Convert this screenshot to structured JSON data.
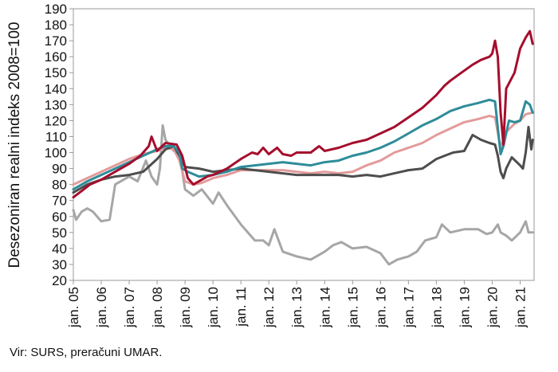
{
  "chart_data": {
    "type": "line",
    "title": "",
    "xlabel": "",
    "ylabel": "Desezoniran realni indeks 2008=100",
    "ylim": [
      20,
      190
    ],
    "yticks": [
      20,
      30,
      40,
      50,
      60,
      70,
      80,
      90,
      100,
      110,
      120,
      130,
      140,
      150,
      160,
      170,
      180,
      190
    ],
    "ytick_labels": [
      "20",
      "30",
      "40",
      "50",
      "60",
      "70",
      "80",
      "90",
      "100",
      "110",
      "120",
      "130",
      "140",
      "150",
      "160",
      "170",
      "180",
      "190"
    ],
    "xlim": [
      2005.0,
      2021.5
    ],
    "xticks": [
      2005,
      2006,
      2007,
      2008,
      2009,
      2010,
      2011,
      2012,
      2013,
      2014,
      2015,
      2016,
      2017,
      2018,
      2019,
      2020,
      2021
    ],
    "xtick_labels": [
      "jan. 05",
      "jan. 06",
      "jan. 07",
      "jan. 08",
      "jan. 09",
      "jan. 10",
      "jan. 11",
      "jan. 12",
      "jan. 13",
      "jan. 14",
      "jan. 15",
      "jan. 16",
      "jan. 17",
      "jan. 18",
      "jan. 19",
      "jan. 20",
      "jan. 21"
    ],
    "grid": false,
    "legend": "none",
    "series": [
      {
        "name": "darkred",
        "color": "#A50E2D",
        "points": [
          [
            2005.0,
            72
          ],
          [
            2005.3,
            76
          ],
          [
            2005.6,
            80
          ],
          [
            2006.0,
            83
          ],
          [
            2006.5,
            88
          ],
          [
            2007.0,
            93
          ],
          [
            2007.4,
            98
          ],
          [
            2007.7,
            104
          ],
          [
            2007.8,
            110
          ],
          [
            2008.0,
            101
          ],
          [
            2008.3,
            106
          ],
          [
            2008.7,
            105
          ],
          [
            2008.9,
            98
          ],
          [
            2009.1,
            84
          ],
          [
            2009.3,
            80
          ],
          [
            2009.5,
            82
          ],
          [
            2009.8,
            85
          ],
          [
            2010.0,
            86
          ],
          [
            2010.5,
            90
          ],
          [
            2011.0,
            96
          ],
          [
            2011.4,
            100
          ],
          [
            2011.6,
            99
          ],
          [
            2011.8,
            103
          ],
          [
            2012.0,
            99
          ],
          [
            2012.3,
            103
          ],
          [
            2012.5,
            99
          ],
          [
            2012.8,
            98
          ],
          [
            2013.0,
            100
          ],
          [
            2013.5,
            100
          ],
          [
            2013.8,
            104
          ],
          [
            2014.0,
            101
          ],
          [
            2014.5,
            103
          ],
          [
            2015.0,
            106
          ],
          [
            2015.5,
            108
          ],
          [
            2016.0,
            112
          ],
          [
            2016.5,
            116
          ],
          [
            2017.0,
            122
          ],
          [
            2017.5,
            128
          ],
          [
            2018.0,
            136
          ],
          [
            2018.3,
            142
          ],
          [
            2018.5,
            145
          ],
          [
            2018.9,
            150
          ],
          [
            2019.3,
            155
          ],
          [
            2019.6,
            158
          ],
          [
            2019.9,
            160
          ],
          [
            2020.0,
            162
          ],
          [
            2020.1,
            170
          ],
          [
            2020.2,
            160
          ],
          [
            2020.3,
            125
          ],
          [
            2020.4,
            105
          ],
          [
            2020.5,
            140
          ],
          [
            2020.8,
            150
          ],
          [
            2021.0,
            165
          ],
          [
            2021.2,
            172
          ],
          [
            2021.35,
            176
          ],
          [
            2021.45,
            168
          ]
        ]
      },
      {
        "name": "teal",
        "color": "#2E8C99",
        "points": [
          [
            2005.0,
            77
          ],
          [
            2005.5,
            82
          ],
          [
            2006.0,
            86
          ],
          [
            2006.5,
            90
          ],
          [
            2007.0,
            94
          ],
          [
            2007.5,
            98
          ],
          [
            2008.0,
            102
          ],
          [
            2008.3,
            104
          ],
          [
            2008.6,
            104
          ],
          [
            2008.8,
            100
          ],
          [
            2008.9,
            90
          ],
          [
            2009.1,
            88
          ],
          [
            2009.5,
            85
          ],
          [
            2010.0,
            86
          ],
          [
            2010.5,
            88
          ],
          [
            2011.0,
            91
          ],
          [
            2011.5,
            92
          ],
          [
            2012.0,
            93
          ],
          [
            2012.5,
            94
          ],
          [
            2013.0,
            93
          ],
          [
            2013.5,
            92
          ],
          [
            2014.0,
            94
          ],
          [
            2014.5,
            95
          ],
          [
            2015.0,
            98
          ],
          [
            2015.5,
            100
          ],
          [
            2016.0,
            103
          ],
          [
            2016.5,
            107
          ],
          [
            2017.0,
            112
          ],
          [
            2017.5,
            117
          ],
          [
            2018.0,
            121
          ],
          [
            2018.5,
            126
          ],
          [
            2019.0,
            129
          ],
          [
            2019.5,
            131
          ],
          [
            2019.9,
            133
          ],
          [
            2020.1,
            132
          ],
          [
            2020.3,
            99
          ],
          [
            2020.4,
            104
          ],
          [
            2020.6,
            120
          ],
          [
            2020.8,
            119
          ],
          [
            2021.0,
            120
          ],
          [
            2021.2,
            132
          ],
          [
            2021.35,
            130
          ],
          [
            2021.45,
            125
          ]
        ]
      },
      {
        "name": "pink",
        "color": "#E39A9A",
        "points": [
          [
            2005.0,
            80
          ],
          [
            2005.5,
            84
          ],
          [
            2006.0,
            88
          ],
          [
            2006.5,
            92
          ],
          [
            2007.0,
            96
          ],
          [
            2007.5,
            99
          ],
          [
            2008.0,
            101
          ],
          [
            2008.3,
            103
          ],
          [
            2008.6,
            102
          ],
          [
            2008.8,
            95
          ],
          [
            2009.0,
            82
          ],
          [
            2009.3,
            80
          ],
          [
            2009.6,
            81
          ],
          [
            2010.0,
            84
          ],
          [
            2010.5,
            86
          ],
          [
            2011.0,
            89
          ],
          [
            2011.5,
            89
          ],
          [
            2012.0,
            89
          ],
          [
            2012.5,
            89
          ],
          [
            2013.0,
            88
          ],
          [
            2013.5,
            87
          ],
          [
            2014.0,
            88
          ],
          [
            2014.5,
            87
          ],
          [
            2015.0,
            88
          ],
          [
            2015.5,
            92
          ],
          [
            2016.0,
            95
          ],
          [
            2016.5,
            100
          ],
          [
            2017.0,
            103
          ],
          [
            2017.5,
            106
          ],
          [
            2018.0,
            111
          ],
          [
            2018.5,
            115
          ],
          [
            2019.0,
            119
          ],
          [
            2019.5,
            121
          ],
          [
            2019.9,
            123
          ],
          [
            2020.1,
            122
          ],
          [
            2020.3,
            103
          ],
          [
            2020.5,
            113
          ],
          [
            2020.8,
            118
          ],
          [
            2021.0,
            120
          ],
          [
            2021.2,
            124
          ],
          [
            2021.45,
            125
          ]
        ]
      },
      {
        "name": "darkgray",
        "color": "#4D4D4D",
        "points": [
          [
            2005.0,
            75
          ],
          [
            2005.5,
            80
          ],
          [
            2006.0,
            83
          ],
          [
            2006.5,
            85
          ],
          [
            2007.0,
            86
          ],
          [
            2007.5,
            88
          ],
          [
            2008.0,
            96
          ],
          [
            2008.3,
            102
          ],
          [
            2008.6,
            104
          ],
          [
            2008.8,
            98
          ],
          [
            2009.0,
            91
          ],
          [
            2009.5,
            90
          ],
          [
            2010.0,
            88
          ],
          [
            2010.5,
            89
          ],
          [
            2011.0,
            90
          ],
          [
            2011.5,
            89
          ],
          [
            2012.0,
            88
          ],
          [
            2012.5,
            87
          ],
          [
            2013.0,
            86
          ],
          [
            2013.5,
            86
          ],
          [
            2014.0,
            86
          ],
          [
            2014.5,
            86
          ],
          [
            2015.0,
            85
          ],
          [
            2015.5,
            86
          ],
          [
            2016.0,
            85
          ],
          [
            2016.5,
            87
          ],
          [
            2017.0,
            89
          ],
          [
            2017.5,
            90
          ],
          [
            2018.0,
            96
          ],
          [
            2018.3,
            98
          ],
          [
            2018.6,
            100
          ],
          [
            2019.0,
            101
          ],
          [
            2019.3,
            111
          ],
          [
            2019.6,
            108
          ],
          [
            2019.9,
            106
          ],
          [
            2020.1,
            105
          ],
          [
            2020.2,
            98
          ],
          [
            2020.3,
            88
          ],
          [
            2020.4,
            84
          ],
          [
            2020.5,
            90
          ],
          [
            2020.7,
            97
          ],
          [
            2021.0,
            92
          ],
          [
            2021.1,
            90
          ],
          [
            2021.2,
            100
          ],
          [
            2021.3,
            116
          ],
          [
            2021.4,
            102
          ],
          [
            2021.45,
            108
          ]
        ]
      },
      {
        "name": "lightgray",
        "color": "#A6A6A6",
        "points": [
          [
            2005.0,
            64
          ],
          [
            2005.1,
            58
          ],
          [
            2005.3,
            63
          ],
          [
            2005.5,
            65
          ],
          [
            2005.7,
            63
          ],
          [
            2006.0,
            57
          ],
          [
            2006.3,
            58
          ],
          [
            2006.5,
            80
          ],
          [
            2007.0,
            85
          ],
          [
            2007.3,
            82
          ],
          [
            2007.6,
            95
          ],
          [
            2007.8,
            85
          ],
          [
            2008.0,
            80
          ],
          [
            2008.1,
            90
          ],
          [
            2008.2,
            117
          ],
          [
            2008.3,
            108
          ],
          [
            2008.6,
            101
          ],
          [
            2008.8,
            100
          ],
          [
            2009.0,
            77
          ],
          [
            2009.3,
            73
          ],
          [
            2009.6,
            77
          ],
          [
            2010.0,
            68
          ],
          [
            2010.2,
            75
          ],
          [
            2010.5,
            67
          ],
          [
            2011.0,
            55
          ],
          [
            2011.5,
            45
          ],
          [
            2011.8,
            45
          ],
          [
            2012.0,
            42
          ],
          [
            2012.2,
            52
          ],
          [
            2012.5,
            38
          ],
          [
            2013.0,
            35
          ],
          [
            2013.5,
            33
          ],
          [
            2014.0,
            38
          ],
          [
            2014.3,
            42
          ],
          [
            2014.6,
            44
          ],
          [
            2015.0,
            40
          ],
          [
            2015.5,
            41
          ],
          [
            2016.0,
            37
          ],
          [
            2016.3,
            30
          ],
          [
            2016.6,
            33
          ],
          [
            2017.0,
            35
          ],
          [
            2017.3,
            38
          ],
          [
            2017.6,
            45
          ],
          [
            2018.0,
            47
          ],
          [
            2018.2,
            55
          ],
          [
            2018.5,
            50
          ],
          [
            2019.0,
            52
          ],
          [
            2019.5,
            52
          ],
          [
            2019.8,
            49
          ],
          [
            2020.0,
            50
          ],
          [
            2020.2,
            55
          ],
          [
            2020.3,
            50
          ],
          [
            2020.5,
            48
          ],
          [
            2020.7,
            45
          ],
          [
            2021.0,
            50
          ],
          [
            2021.2,
            57
          ],
          [
            2021.3,
            50
          ],
          [
            2021.45,
            50
          ]
        ]
      }
    ]
  },
  "source_text": "Vir: SURS, preračuni UMAR."
}
